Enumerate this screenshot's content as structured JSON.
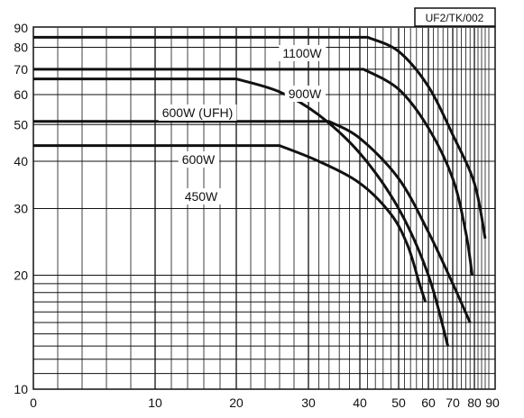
{
  "chart_data": {
    "type": "line",
    "title": "",
    "xlabel": "",
    "ylabel": "",
    "code_label": "UF2/TK/002",
    "x_scale": "reciprocal-style (axis compressed toward 90)",
    "y_scale": "log",
    "xlim": [
      0,
      90
    ],
    "ylim": [
      10,
      90
    ],
    "grid": true,
    "x_ticks": [
      "0",
      "10",
      "20",
      "30",
      "40",
      "50",
      "60",
      "70",
      "80",
      "90"
    ],
    "y_ticks": [
      "10",
      "20",
      "30",
      "40",
      "50",
      "60",
      "70",
      "80",
      "90"
    ],
    "series": [
      {
        "name": "1100W",
        "points": [
          [
            0,
            85
          ],
          [
            42,
            85
          ],
          [
            50,
            78
          ],
          [
            60,
            63
          ],
          [
            70,
            47
          ],
          [
            80,
            35
          ],
          [
            86,
            25
          ]
        ]
      },
      {
        "name": "900W",
        "points": [
          [
            0,
            70
          ],
          [
            41,
            70
          ],
          [
            50,
            62
          ],
          [
            60,
            49
          ],
          [
            70,
            36
          ],
          [
            76,
            26
          ],
          [
            79,
            20
          ]
        ]
      },
      {
        "name": "600W (UFH)",
        "points": [
          [
            0,
            66
          ],
          [
            20,
            66
          ],
          [
            26,
            61
          ],
          [
            32,
            53
          ],
          [
            40,
            42
          ],
          [
            50,
            30
          ],
          [
            60,
            20
          ],
          [
            68,
            13
          ]
        ]
      },
      {
        "name": "600W",
        "points": [
          [
            0,
            51
          ],
          [
            34,
            51
          ],
          [
            40,
            46
          ],
          [
            50,
            36
          ],
          [
            60,
            26
          ],
          [
            70,
            19
          ],
          [
            78,
            15
          ]
        ]
      },
      {
        "name": "450W",
        "points": [
          [
            0,
            44
          ],
          [
            26,
            44
          ],
          [
            32,
            40
          ],
          [
            40,
            35
          ],
          [
            48,
            29
          ],
          [
            53,
            24
          ],
          [
            57,
            19
          ],
          [
            59,
            17
          ]
        ]
      }
    ]
  }
}
